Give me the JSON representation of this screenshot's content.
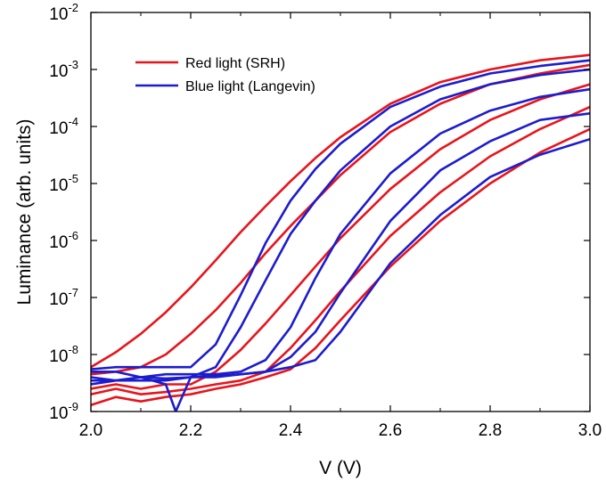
{
  "chart_data": {
    "type": "line",
    "title": "",
    "xlabel": "V (V)",
    "ylabel": "Luminance (arb. units)",
    "xlim": [
      2.0,
      3.0
    ],
    "ylim": [
      1e-09,
      0.01
    ],
    "yscale": "log",
    "x_ticks": [
      2.0,
      2.2,
      2.4,
      2.6,
      2.8,
      3.0
    ],
    "x_tick_labels": [
      "2.0",
      "2.2",
      "2.4",
      "2.6",
      "2.8",
      "3.0"
    ],
    "y_ticks": [
      1e-09,
      1e-08,
      1e-07,
      1e-06,
      1e-05,
      0.0001,
      0.001,
      0.01
    ],
    "y_tick_labels": [
      {
        "base": "10",
        "exp": "-9"
      },
      {
        "base": "10",
        "exp": "-8"
      },
      {
        "base": "10",
        "exp": "-7"
      },
      {
        "base": "10",
        "exp": "-6"
      },
      {
        "base": "10",
        "exp": "-5"
      },
      {
        "base": "10",
        "exp": "-4"
      },
      {
        "base": "10",
        "exp": "-3"
      },
      {
        "base": "10",
        "exp": "-2"
      }
    ],
    "grid": false,
    "legend": {
      "position": "top-left",
      "entries": [
        {
          "label": "Red light (SRH)",
          "color": "#e8141b"
        },
        {
          "label": "Blue light (Langevin)",
          "color": "#1c1ccf"
        }
      ]
    },
    "series": [
      {
        "group": "Red light (SRH)",
        "color": "#e8141b",
        "x": [
          2.0,
          2.05,
          2.1,
          2.15,
          2.2,
          2.25,
          2.3,
          2.35,
          2.4,
          2.45,
          2.5,
          2.6,
          2.7,
          2.8,
          2.9,
          3.0
        ],
        "y": [
          6e-09,
          1.1e-08,
          2.3e-08,
          5.5e-08,
          1.5e-07,
          4.5e-07,
          1.4e-06,
          4e-06,
          1.1e-05,
          2.8e-05,
          6.5e-05,
          0.00025,
          0.0006,
          0.001,
          0.00145,
          0.0018
        ]
      },
      {
        "group": "Red light (SRH)",
        "color": "#e8141b",
        "x": [
          2.0,
          2.05,
          2.1,
          2.15,
          2.2,
          2.25,
          2.3,
          2.35,
          2.4,
          2.45,
          2.5,
          2.6,
          2.7,
          2.8,
          2.9,
          3.0
        ],
        "y": [
          4.5e-09,
          5e-09,
          6e-09,
          1e-08,
          2.3e-08,
          6e-08,
          1.8e-07,
          6e-07,
          1.8e-06,
          5e-06,
          1.4e-05,
          8e-05,
          0.00025,
          0.00055,
          0.00085,
          0.0012
        ]
      },
      {
        "group": "Red light (SRH)",
        "color": "#e8141b",
        "x": [
          2.0,
          2.05,
          2.1,
          2.15,
          2.2,
          2.25,
          2.3,
          2.35,
          2.4,
          2.45,
          2.5,
          2.6,
          2.7,
          2.8,
          2.9,
          3.0
        ],
        "y": [
          2.5e-09,
          3e-09,
          2.5e-09,
          3e-09,
          3e-09,
          5e-09,
          1.2e-08,
          3.5e-08,
          1.1e-07,
          3.5e-07,
          1.1e-06,
          8e-06,
          4e-05,
          0.00013,
          0.0003,
          0.00055
        ]
      },
      {
        "group": "Red light (SRH)",
        "color": "#e8141b",
        "x": [
          2.0,
          2.05,
          2.1,
          2.15,
          2.2,
          2.25,
          2.3,
          2.35,
          2.4,
          2.45,
          2.5,
          2.6,
          2.7,
          2.8,
          2.9,
          3.0
        ],
        "y": [
          2e-09,
          2.5e-09,
          2e-09,
          2.2e-09,
          2.5e-09,
          3e-09,
          3.5e-09,
          5e-09,
          1.3e-08,
          4e-08,
          1.3e-07,
          1.2e-06,
          7e-06,
          3e-05,
          9e-05,
          0.00022
        ]
      },
      {
        "group": "Red light (SRH)",
        "color": "#e8141b",
        "x": [
          2.0,
          2.05,
          2.1,
          2.15,
          2.2,
          2.25,
          2.3,
          2.35,
          2.4,
          2.45,
          2.5,
          2.6,
          2.7,
          2.8,
          2.9,
          3.0
        ],
        "y": [
          1.3e-09,
          1.8e-09,
          1.5e-09,
          1.8e-09,
          2e-09,
          2.5e-09,
          3e-09,
          4e-09,
          5.5e-09,
          1.3e-08,
          4e-08,
          3.5e-07,
          2.2e-06,
          1e-05,
          3.5e-05,
          9e-05
        ]
      },
      {
        "group": "Blue light (Langevin)",
        "color": "#1c1ccf",
        "x": [
          2.0,
          2.05,
          2.1,
          2.15,
          2.2,
          2.25,
          2.3,
          2.35,
          2.4,
          2.45,
          2.5,
          2.6,
          2.7,
          2.8,
          2.9,
          3.0
        ],
        "y": [
          5.5e-09,
          6e-09,
          6e-09,
          6e-09,
          6e-09,
          1.5e-08,
          1.1e-07,
          9e-07,
          5e-06,
          1.8e-05,
          5e-05,
          0.00022,
          0.0005,
          0.00085,
          0.00115,
          0.00145
        ]
      },
      {
        "group": "Blue light (Langevin)",
        "color": "#1c1ccf",
        "x": [
          2.0,
          2.05,
          2.1,
          2.15,
          2.17,
          2.2,
          2.25,
          2.3,
          2.35,
          2.4,
          2.45,
          2.5,
          2.6,
          2.7,
          2.8,
          2.9,
          3.0
        ],
        "y": [
          5e-09,
          5e-09,
          4e-09,
          3e-09,
          1e-09,
          4e-09,
          6e-09,
          3e-08,
          2e-07,
          1.3e-06,
          5e-06,
          1.7e-05,
          0.0001,
          0.0003,
          0.00055,
          0.0008,
          0.001
        ]
      },
      {
        "group": "Blue light (Langevin)",
        "color": "#1c1ccf",
        "x": [
          2.0,
          2.05,
          2.1,
          2.15,
          2.2,
          2.25,
          2.3,
          2.35,
          2.4,
          2.45,
          2.5,
          2.6,
          2.7,
          2.8,
          2.9,
          3.0
        ],
        "y": [
          4e-09,
          3.5e-09,
          4e-09,
          4.5e-09,
          4.5e-09,
          4.5e-09,
          5e-09,
          8e-09,
          3e-08,
          2.2e-07,
          1.3e-06,
          1.5e-05,
          7.5e-05,
          0.00019,
          0.00033,
          0.00045
        ]
      },
      {
        "group": "Blue light (Langevin)",
        "color": "#1c1ccf",
        "x": [
          2.0,
          2.05,
          2.1,
          2.15,
          2.2,
          2.25,
          2.3,
          2.35,
          2.4,
          2.45,
          2.5,
          2.6,
          2.7,
          2.8,
          2.9,
          3.0
        ],
        "y": [
          3.5e-09,
          3.5e-09,
          3.5e-09,
          3.5e-09,
          4e-09,
          4e-09,
          4.5e-09,
          5e-09,
          9e-09,
          2.5e-08,
          1.2e-07,
          2.2e-06,
          1.7e-05,
          5.5e-05,
          0.00013,
          0.00017
        ]
      },
      {
        "group": "Blue light (Langevin)",
        "color": "#1c1ccf",
        "x": [
          2.0,
          2.05,
          2.1,
          2.15,
          2.2,
          2.25,
          2.3,
          2.35,
          2.4,
          2.45,
          2.5,
          2.6,
          2.7,
          2.8,
          2.9,
          3.0
        ],
        "y": [
          3e-09,
          3.5e-09,
          4e-09,
          3.8e-09,
          4e-09,
          4.2e-09,
          4.5e-09,
          5e-09,
          6e-09,
          8e-09,
          2.5e-08,
          4e-07,
          2.8e-06,
          1.3e-05,
          3.2e-05,
          6e-05
        ]
      }
    ]
  }
}
